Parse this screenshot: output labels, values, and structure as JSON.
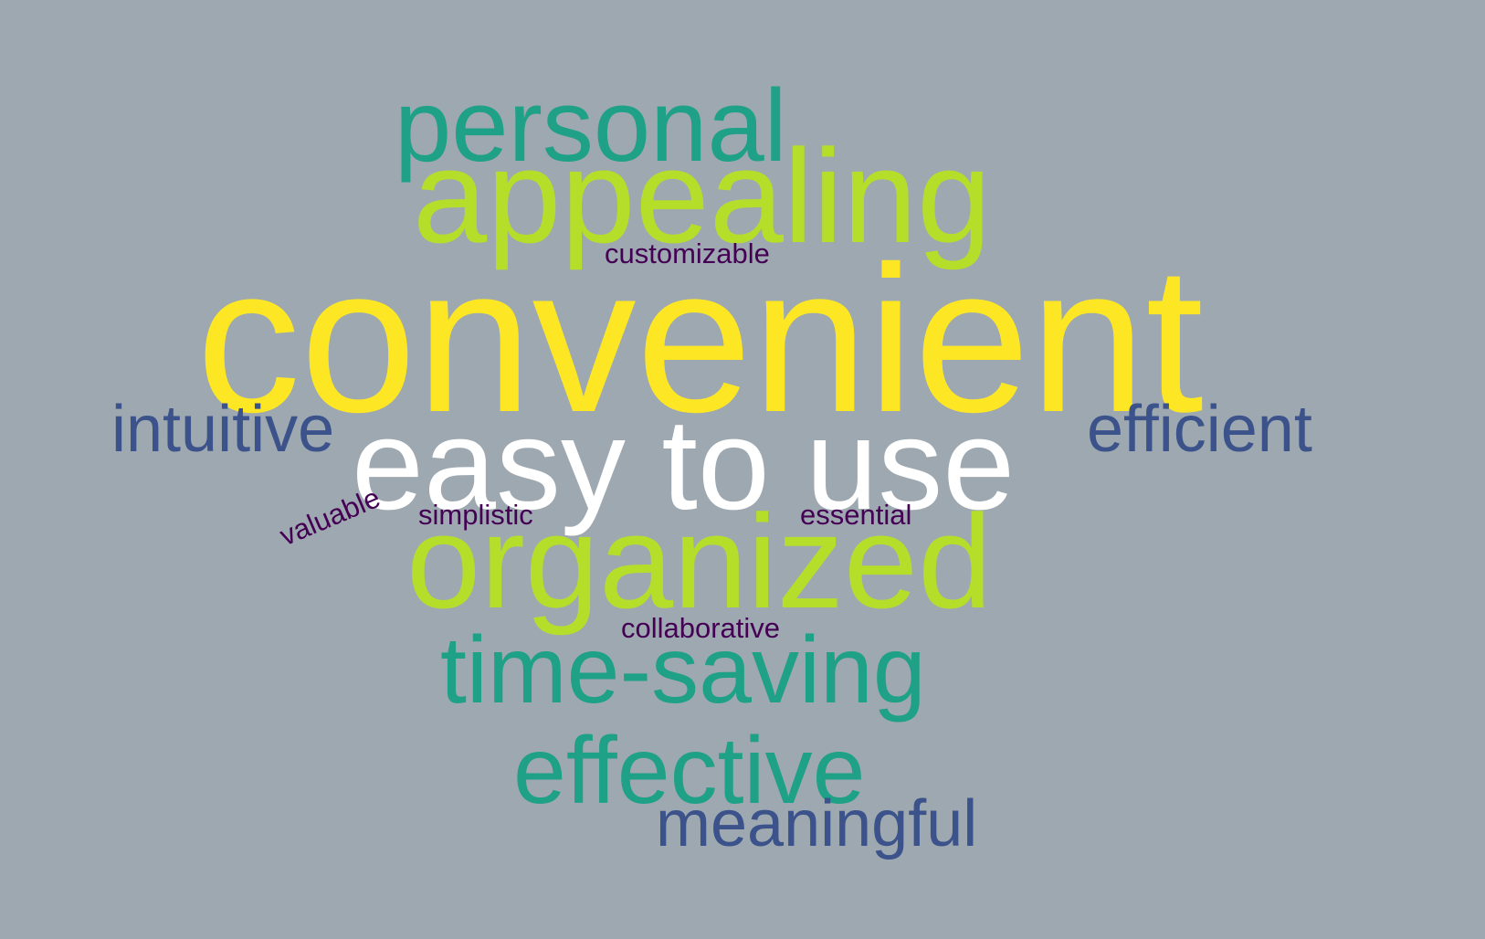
{
  "background_color": "#9ea8b0",
  "words": {
    "convenient": {
      "text": "convenient",
      "color": "#fde725"
    },
    "easy_to_use": {
      "text": "easy to use",
      "color": "#ffffff"
    },
    "appealing": {
      "text": "appealing",
      "color": "#b5de2b"
    },
    "organized": {
      "text": "organized",
      "color": "#b5de2b"
    },
    "personal": {
      "text": "personal",
      "color": "#1fa187"
    },
    "time_saving": {
      "text": "time-saving",
      "color": "#1fa187"
    },
    "effective": {
      "text": "effective",
      "color": "#1fa187"
    },
    "intuitive": {
      "text": "intuitive",
      "color": "#3b528b"
    },
    "efficient": {
      "text": "efficient",
      "color": "#3b528b"
    },
    "meaningful": {
      "text": "meaningful",
      "color": "#3b528b"
    },
    "customizable": {
      "text": "customizable",
      "color": "#440154"
    },
    "simplistic": {
      "text": "simplistic",
      "color": "#440154"
    },
    "essential": {
      "text": "essential",
      "color": "#440154"
    },
    "collaborative": {
      "text": "collaborative",
      "color": "#440154"
    },
    "valuable": {
      "text": "valuable",
      "color": "#440154"
    }
  }
}
